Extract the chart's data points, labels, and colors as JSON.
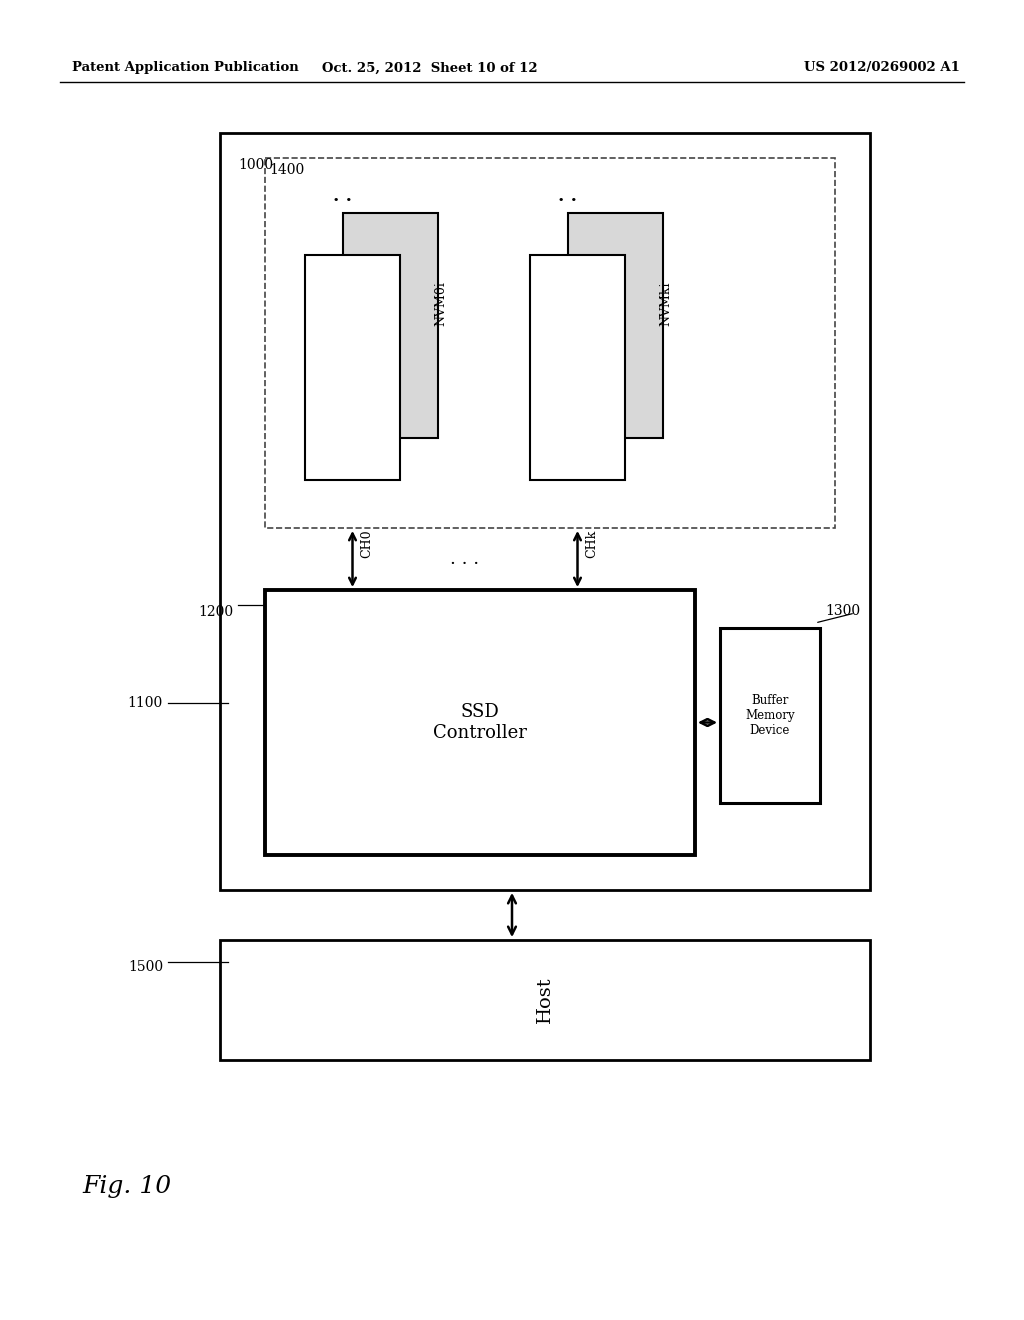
{
  "title_left": "Patent Application Publication",
  "title_mid": "Oct. 25, 2012  Sheet 10 of 12",
  "title_right": "US 2012/0269002 A1",
  "fig_label": "Fig. 10",
  "bg_color": "#ffffff"
}
